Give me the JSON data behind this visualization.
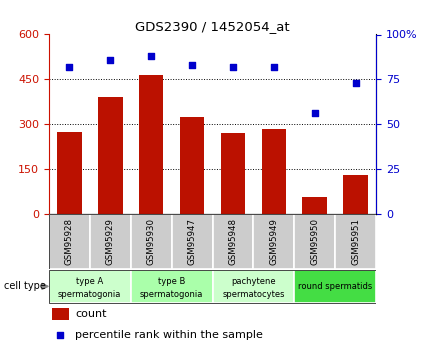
{
  "title": "GDS2390 / 1452054_at",
  "samples": [
    "GSM95928",
    "GSM95929",
    "GSM95930",
    "GSM95947",
    "GSM95948",
    "GSM95949",
    "GSM95950",
    "GSM95951"
  ],
  "counts": [
    275,
    390,
    465,
    325,
    270,
    285,
    55,
    130
  ],
  "percentiles": [
    82,
    86,
    88,
    83,
    82,
    82,
    56,
    73
  ],
  "cell_types": [
    {
      "label": "type A\nspermatogonia",
      "span": [
        0,
        2
      ],
      "color": "#ccffcc"
    },
    {
      "label": "type B\nspermatogonia",
      "span": [
        2,
        4
      ],
      "color": "#aaffaa"
    },
    {
      "label": "pachytene\nspermatocytes",
      "span": [
        4,
        6
      ],
      "color": "#ccffcc"
    },
    {
      "label": "round spermatids",
      "span": [
        6,
        8
      ],
      "color": "#44dd44"
    }
  ],
  "bar_color": "#bb1100",
  "dot_color": "#0000cc",
  "left_yticks": [
    0,
    150,
    300,
    450,
    600
  ],
  "right_yticks": [
    0,
    25,
    50,
    75,
    100
  ],
  "ylim_left": [
    0,
    600
  ],
  "ylim_right": [
    0,
    100
  ],
  "left_yaxis_color": "#cc1100",
  "right_yaxis_color": "#0000cc",
  "gray_color": "#cccccc",
  "cell_type_label": "cell type",
  "legend_count": "count",
  "legend_percentile": "percentile rank within the sample"
}
